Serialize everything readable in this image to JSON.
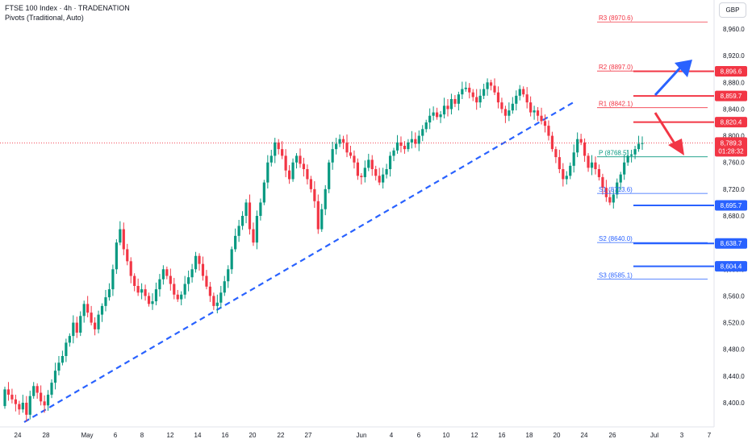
{
  "header": {
    "title": "FTSE 100 Index · 4h · TRADENATION",
    "subtitle": "Pivots (Traditional, Auto)",
    "currency": "GBP"
  },
  "colors": {
    "up": "#089981",
    "down": "#f23645",
    "trend": "#2962ff",
    "resistance": "#f23645",
    "support": "#2962ff",
    "pivot": "#089981"
  },
  "chart_data": {
    "type": "candlestick",
    "y_ticks": [
      8400,
      8440,
      8480,
      8520,
      8560,
      8600,
      8640,
      8680,
      8720,
      8760,
      8800,
      8840,
      8880,
      8920,
      8960
    ],
    "y_tick_labels": [
      "8,400.0",
      "8,440.0",
      "8,480.0",
      "8,520.0",
      "8,560.0",
      "8,600.0",
      "8,640.0",
      "8,680.0",
      "8,720.0",
      "8,760.0",
      "8,800.0",
      "8,840.0",
      "8,880.0",
      "8,920.0",
      "8,960.0"
    ],
    "ylim": [
      8366,
      8992
    ],
    "x_labels": [
      "24",
      "28",
      "May",
      "6",
      "8",
      "12",
      "14",
      "16",
      "20",
      "22",
      "27",
      "Jun",
      "4",
      "6",
      "10",
      "12",
      "16",
      "18",
      "20",
      "24",
      "26",
      "Jul",
      "3",
      "7"
    ],
    "series_close": [
      8420,
      8412,
      8405,
      8398,
      8390,
      8400,
      8382,
      8410,
      8425,
      8415,
      8402,
      8396,
      8412,
      8430,
      8448,
      8460,
      8470,
      8490,
      8500,
      8520,
      8505,
      8530,
      8548,
      8535,
      8520,
      8510,
      8532,
      8545,
      8558,
      8570,
      8600,
      8640,
      8660,
      8630,
      8612,
      8590,
      8575,
      8565,
      8570,
      8560,
      8548,
      8552,
      8570,
      8585,
      8600,
      8590,
      8578,
      8562,
      8555,
      8562,
      8578,
      8588,
      8600,
      8620,
      8608,
      8590,
      8574,
      8560,
      8545,
      8550,
      8565,
      8582,
      8600,
      8630,
      8650,
      8665,
      8680,
      8700,
      8660,
      8640,
      8680,
      8700,
      8730,
      8760,
      8770,
      8790,
      8780,
      8770,
      8748,
      8735,
      8760,
      8770,
      8758,
      8750,
      8735,
      8720,
      8702,
      8660,
      8690,
      8720,
      8760,
      8780,
      8788,
      8795,
      8790,
      8775,
      8770,
      8760,
      8740,
      8738,
      8752,
      8764,
      8750,
      8740,
      8730,
      8742,
      8750,
      8770,
      8778,
      8790,
      8785,
      8780,
      8790,
      8795,
      8788,
      8800,
      8810,
      8820,
      8830,
      8835,
      8828,
      8832,
      8845,
      8840,
      8855,
      8848,
      8862,
      8870,
      8872,
      8865,
      8858,
      8850,
      8860,
      8870,
      8880,
      8875,
      8865,
      8850,
      8840,
      8830,
      8838,
      8848,
      8860,
      8870,
      8862,
      8850,
      8835,
      8838,
      8830,
      8822,
      8815,
      8800,
      8780,
      8768,
      8750,
      8735,
      8740,
      8755,
      8775,
      8795,
      8790,
      8770,
      8752,
      8760,
      8750,
      8738,
      8722,
      8708,
      8700,
      8712,
      8730,
      8742,
      8760,
      8770,
      8772,
      8780,
      8788,
      8789
    ],
    "pivots": [
      {
        "label": "R3 (8970.6)",
        "value": 8970.6,
        "kind": "resistance"
      },
      {
        "label": "R2 (8897.0)",
        "value": 8897.0,
        "kind": "resistance"
      },
      {
        "label": "R1 (8842.1)",
        "value": 8842.1,
        "kind": "resistance"
      },
      {
        "label": "P (8768.5)",
        "value": 8768.5,
        "kind": "pivot"
      },
      {
        "label": "S1 (8713.6)",
        "value": 8713.6,
        "kind": "support"
      },
      {
        "label": "S2 (8640.0)",
        "value": 8640.0,
        "kind": "support"
      },
      {
        "label": "S3 (8585.1)",
        "value": 8585.1,
        "kind": "support"
      }
    ],
    "levels": [
      {
        "value": 8896.6,
        "label": "8,896.6",
        "kind": "resistance"
      },
      {
        "value": 8859.7,
        "label": "8,859.7",
        "kind": "resistance"
      },
      {
        "value": 8820.4,
        "label": "8,820.4",
        "kind": "resistance"
      },
      {
        "value": 8695.7,
        "label": "8,695.7",
        "kind": "support"
      },
      {
        "value": 8638.7,
        "label": "8,638.7",
        "kind": "support"
      },
      {
        "value": 8604.4,
        "label": "8,604.4",
        "kind": "support"
      }
    ],
    "last_price": {
      "value": 8789.3,
      "label": "8,789.3",
      "countdown": "01:28:32"
    },
    "trendline": [
      {
        "x": 0.0,
        "y": 8371
      },
      {
        "x": 1.0,
        "y": 8851
      }
    ],
    "arrows": [
      {
        "direction": "up",
        "color": "blue"
      },
      {
        "direction": "down",
        "color": "red"
      }
    ]
  }
}
